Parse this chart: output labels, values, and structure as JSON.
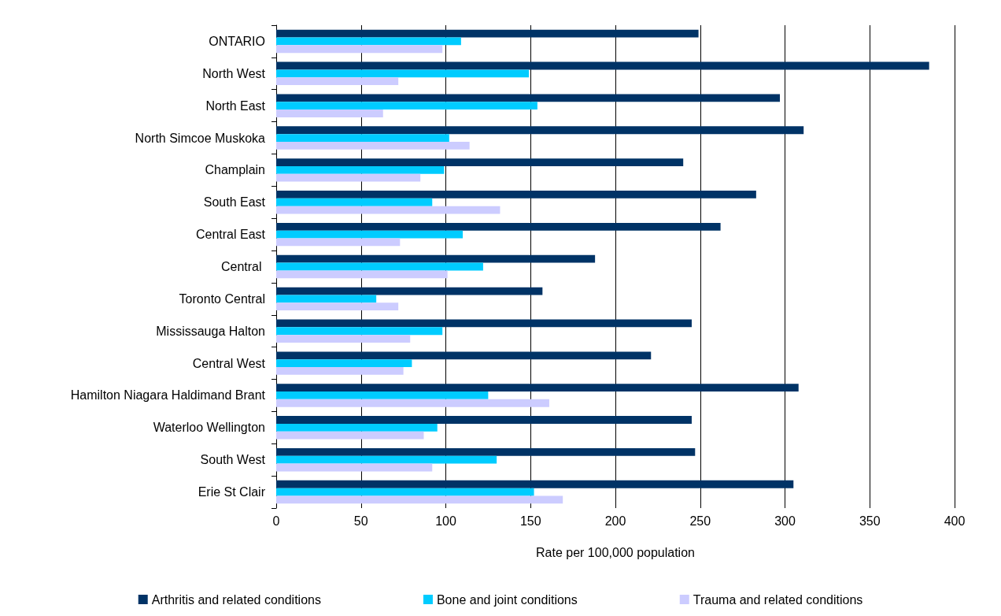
{
  "chart_data": {
    "type": "bar",
    "orientation": "horizontal",
    "xlabel": "Rate per 100,000 population",
    "categories": [
      "ONTARIO",
      "North West",
      "North East",
      "North Simcoe Muskoka",
      "Champlain",
      "South East",
      "Central East",
      "Central ",
      "Toronto Central",
      "Mississauga Halton",
      "Central West",
      "Hamilton Niagara Haldimand Brant",
      "Waterloo Wellington",
      "South West",
      "Erie St Clair"
    ],
    "series": [
      {
        "name": "Arthritis and related conditions",
        "color": "#003366",
        "values": [
          249,
          385,
          297,
          311,
          240,
          283,
          262,
          188,
          157,
          245,
          221,
          308,
          245,
          247,
          305
        ]
      },
      {
        "name": "Bone and joint conditions",
        "color": "#00ccff",
        "values": [
          109,
          149,
          154,
          102,
          99,
          92,
          110,
          122,
          59,
          98,
          80,
          125,
          95,
          130,
          152
        ]
      },
      {
        "name": "Trauma and related conditions",
        "color": "#ccccff",
        "values": [
          98,
          72,
          63,
          114,
          85,
          132,
          73,
          101,
          72,
          79,
          75,
          161,
          87,
          92,
          169
        ]
      }
    ],
    "xlim": [
      0,
      400
    ],
    "xticks": [
      0,
      50,
      100,
      150,
      200,
      250,
      300,
      350,
      400
    ],
    "grid": "x",
    "legend": "bottom"
  }
}
